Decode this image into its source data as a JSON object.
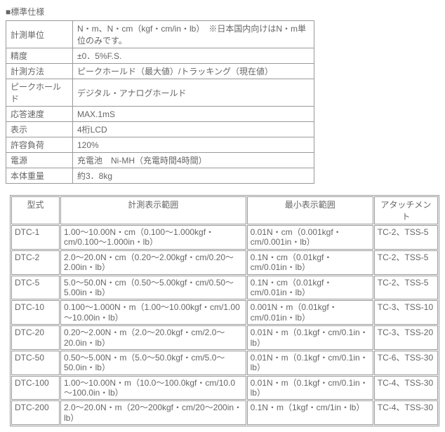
{
  "heading": "■標準仕様",
  "spec_table": {
    "rows": [
      {
        "label": "計測単位",
        "value": "N・m、N・cm（kgf・cm/in・lb）　※日本国内向けはN・m単位のみです。"
      },
      {
        "label": "精度",
        "value": "±0．5%F.S."
      },
      {
        "label": "計測方法",
        "value": "ピークホールド（最大値）/トラッキング（現在値）"
      },
      {
        "label": "ピークホールド",
        "value": "デジタル・アナログホールド"
      },
      {
        "label": "応答速度",
        "value": "MAX.1mS"
      },
      {
        "label": "表示",
        "value": "4桁LCD"
      },
      {
        "label": "許容負荷",
        "value": "120%"
      },
      {
        "label": "電源",
        "value": "充電池　Ni-MH（充電時間4時間）"
      },
      {
        "label": "本体重量",
        "value": "約3．8kg"
      }
    ]
  },
  "models_table": {
    "headers": {
      "model": "型式",
      "range": "計測表示範囲",
      "min": "最小表示範囲",
      "attach": "アタッチメント"
    },
    "rows": [
      {
        "model": "DTC-1",
        "range": "1.00～10.00N・cm（0.100～1.000kgf・cm/0.100～1.000in・lb）",
        "min": "0.01N・cm（0.001kgf・cm/0.001in・lb）",
        "attach": "TC-2、TSS-5"
      },
      {
        "model": "DTC-2",
        "range": "2.0～20.0N・cm（0.20～2.00kgf・cm/0.20～2.00in・lb）",
        "min": "0.1N・cm（0.01kgf・cm/0.01in・lb）",
        "attach": "TC-2、TSS-5"
      },
      {
        "model": "DTC-5",
        "range": "5.0～50.0N・cm（0.50～5.00kgf・cm/0.50～5.00in・lb）",
        "min": "0.1N・cm（0.01kgf・cm/0.01in・lb）",
        "attach": "TC-2、TSS-5"
      },
      {
        "model": "DTC-10",
        "range": "0.100～1.000N・m（1.00～10.00kgf・cm/1.00～10.00in・lb）",
        "min": "0.001N・m（0.01kgf・cm/0.01in・lb）",
        "attach": "TC-3、TSS-10"
      },
      {
        "model": "DTC-20",
        "range": "0.20～2.00N・m（2.0～20.0kgf・cm/2.0～20.0in・lb）",
        "min": "0.01N・m（0.1kgf・cm/0.1in・lb）",
        "attach": "TC-3、TSS-20"
      },
      {
        "model": "DTC-50",
        "range": "0.50～5.00N・m（5.0～50.0kgf・cm/5.0～50.0in・lb）",
        "min": "0.01N・m（0.1kgf・cm/0.1in・lb）",
        "attach": "TC-6、TSS-30"
      },
      {
        "model": "DTC-100",
        "range": "1.00～10.00N・m（10.0～100.0kgf・cm/10.0～100.0in・lb）",
        "min": "0.01N・m（0.1kgf・cm/0.1in・lb）",
        "attach": "TC-4、TSS-30"
      },
      {
        "model": "DTC-200",
        "range": "2.0～20.0N・m（20～200kgf・cm/20～200in・lb）",
        "min": "0.1N・m（1kgf・cm/1in・lb）",
        "attach": "TC-4、TSS-30"
      }
    ]
  }
}
